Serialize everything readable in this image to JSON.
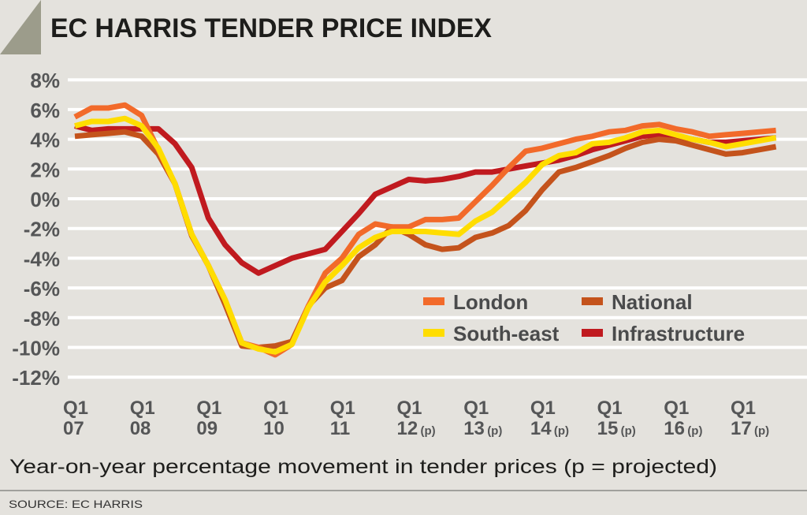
{
  "chart_data": {
    "type": "line",
    "title": "EC HARRIS TENDER PRICE INDEX",
    "subtitle": "Year-on-year percentage movement in tender prices (p = projected)",
    "source": "SOURCE: EC HARRIS",
    "xlabel": "",
    "ylabel": "",
    "ylim": [
      -12,
      8
    ],
    "yticks": [
      "8%",
      "6%",
      "4%",
      "2%",
      "0%",
      "-2%",
      "-4%",
      "-6%",
      "-8%",
      "-10%",
      "-12%"
    ],
    "ytick_values": [
      8,
      6,
      4,
      2,
      0,
      -2,
      -4,
      -6,
      -8,
      -10,
      -12
    ],
    "xticks": [
      {
        "q": "Q1",
        "year": "07",
        "suffix": ""
      },
      {
        "q": "Q1",
        "year": "08",
        "suffix": ""
      },
      {
        "q": "Q1",
        "year": "09",
        "suffix": ""
      },
      {
        "q": "Q1",
        "year": "10",
        "suffix": ""
      },
      {
        "q": "Q1",
        "year": "11",
        "suffix": ""
      },
      {
        "q": "Q1",
        "year": "12",
        "suffix": "(p)"
      },
      {
        "q": "Q1",
        "year": "13",
        "suffix": "(p)"
      },
      {
        "q": "Q1",
        "year": "14",
        "suffix": "(p)"
      },
      {
        "q": "Q1",
        "year": "15",
        "suffix": "(p)"
      },
      {
        "q": "Q1",
        "year": "16",
        "suffix": "(p)"
      },
      {
        "q": "Q1",
        "year": "17",
        "suffix": "(p)"
      }
    ],
    "x_start": "Q1 2007",
    "x_end": "Q3 2017",
    "x_unit": "quarter",
    "grid": true,
    "legend_position": "bottom-right",
    "series": [
      {
        "name": "London",
        "color": "#f26a2a",
        "values": [
          5.5,
          6.1,
          6.1,
          6.3,
          5.6,
          3.3,
          1.0,
          -2.4,
          -4.5,
          -6.8,
          -9.7,
          -10.0,
          -10.5,
          -9.8,
          -7.2,
          -5.0,
          -4.0,
          -2.4,
          -1.7,
          -1.9,
          -1.9,
          -1.4,
          -1.4,
          -1.3,
          -0.2,
          0.9,
          2.1,
          3.2,
          3.4,
          3.7,
          4.0,
          4.2,
          4.5,
          4.6,
          4.9,
          5.0,
          4.7,
          4.5,
          4.2,
          4.3,
          4.4,
          4.5,
          4.6
        ]
      },
      {
        "name": "South-east",
        "color": "#ffdd00",
        "values": [
          4.9,
          5.2,
          5.2,
          5.4,
          4.9,
          3.4,
          1.0,
          -2.4,
          -4.5,
          -6.8,
          -9.7,
          -10.1,
          -10.3,
          -9.8,
          -7.3,
          -5.6,
          -4.5,
          -3.3,
          -2.6,
          -2.2,
          -2.2,
          -2.2,
          -2.3,
          -2.4,
          -1.5,
          -0.9,
          0.1,
          1.1,
          2.3,
          2.9,
          3.1,
          3.7,
          3.8,
          4.1,
          4.5,
          4.6,
          4.3,
          4.0,
          3.8,
          3.5,
          3.7,
          3.9,
          4.1
        ]
      },
      {
        "name": "National",
        "color": "#c4531c",
        "values": [
          4.2,
          4.3,
          4.4,
          4.5,
          4.2,
          3.0,
          1.0,
          -2.5,
          -4.5,
          -7.1,
          -9.9,
          -10.0,
          -9.9,
          -9.6,
          -7.2,
          -6.0,
          -5.5,
          -3.9,
          -3.1,
          -1.9,
          -2.4,
          -3.1,
          -3.4,
          -3.3,
          -2.6,
          -2.3,
          -1.8,
          -0.8,
          0.6,
          1.8,
          2.1,
          2.5,
          2.9,
          3.4,
          3.8,
          4.0,
          3.9,
          3.6,
          3.3,
          3.0,
          3.1,
          3.3,
          3.5
        ]
      },
      {
        "name": "Infrastructure",
        "color": "#c01a1f",
        "values": [
          4.9,
          4.6,
          4.7,
          4.7,
          4.7,
          4.7,
          3.7,
          2.1,
          -1.3,
          -3.1,
          -4.3,
          -5.0,
          -4.5,
          -4.0,
          -3.7,
          -3.4,
          -2.2,
          -1.0,
          0.3,
          0.8,
          1.3,
          1.2,
          1.3,
          1.5,
          1.8,
          1.8,
          2.0,
          2.2,
          2.4,
          2.6,
          2.9,
          3.3,
          3.6,
          3.9,
          4.2,
          4.3,
          4.2,
          4.0,
          3.8,
          3.8,
          3.9,
          4.0,
          4.1
        ]
      }
    ]
  },
  "colors": {
    "background": "#e4e2dd",
    "corner": "#9c9c8b",
    "grid": "#ffffff"
  }
}
